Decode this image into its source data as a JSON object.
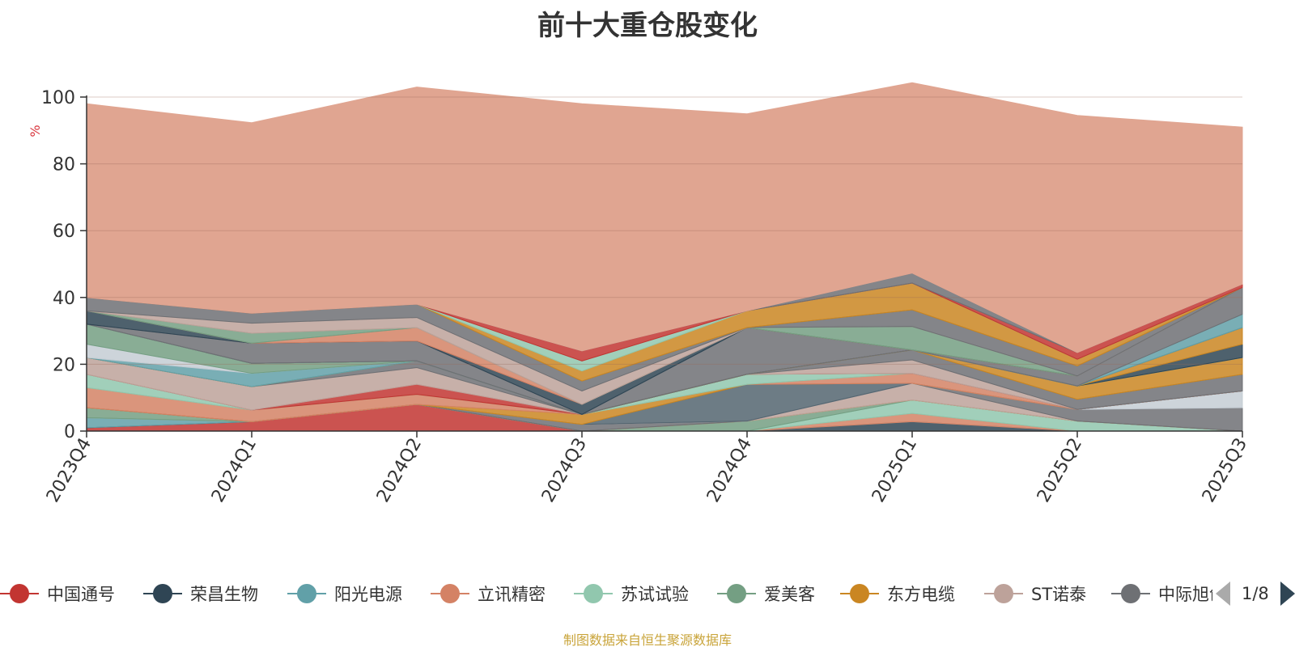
{
  "chart_data": {
    "type": "area",
    "stacked": true,
    "title": "前十大重仓股变化",
    "ylabel": "%",
    "ylim": [
      0,
      100
    ],
    "yticks": [
      0,
      20,
      40,
      60,
      80,
      100
    ],
    "grid": true,
    "x": [
      "2023Q4",
      "2024Q1",
      "2024Q2",
      "2024Q3",
      "2024Q4",
      "2025Q1",
      "2025Q2",
      "2025Q3"
    ],
    "legend_position": "bottom",
    "legend_page": "1/8",
    "series": [
      {
        "name": "中国通号",
        "color": "#c23531",
        "values": [
          1.0,
          2.8,
          8.0,
          0.0,
          0.0,
          0.0,
          0.0,
          0.0
        ]
      },
      {
        "name": "荣昌生物",
        "color": "#2f4554",
        "values": [
          0.0,
          0.0,
          0.0,
          0.0,
          0.0,
          2.8,
          0.0,
          0.0
        ]
      },
      {
        "name": "阳光电源",
        "color": "#61a0a8",
        "values": [
          3.0,
          0.0,
          0.0,
          0.0,
          0.0,
          0.0,
          0.0,
          0.0
        ]
      },
      {
        "name": "立讯精密",
        "color": "#d48265",
        "values": [
          0.0,
          0.0,
          0.0,
          0.0,
          0.0,
          2.5,
          0.0,
          0.0
        ]
      },
      {
        "name": "苏试试验",
        "color": "#91c7ae",
        "values": [
          0.0,
          0.0,
          0.0,
          0.0,
          0.0,
          4.0,
          3.0,
          0.0
        ]
      },
      {
        "name": "爱美客",
        "color": "#749f83",
        "values": [
          3.0,
          0.0,
          0.0,
          0.0,
          3.0,
          0.0,
          0.0,
          0.0
        ]
      },
      {
        "name": "东方电缆",
        "color": "#ca8622",
        "values": [
          0.0,
          0.0,
          0.0,
          0.0,
          0.0,
          0.0,
          0.0,
          0.0
        ]
      },
      {
        "name": "ST诺泰",
        "color": "#bda29a",
        "values": [
          0.0,
          0.0,
          0.0,
          0.0,
          0.0,
          5.0,
          0.0,
          0.0
        ]
      },
      {
        "name": "中际旭创",
        "color": "#6e7074",
        "values": [
          0.0,
          0.0,
          0.0,
          2.0,
          0.0,
          0.0,
          3.5,
          7.0
        ]
      },
      {
        "name": "",
        "color": "#c4ccd3",
        "values": [
          0.0,
          0.0,
          0.0,
          0.0,
          0.0,
          0.0,
          0.0,
          5.0
        ]
      },
      {
        "name": "",
        "color": "#546570",
        "values": [
          0.0,
          0.0,
          0.0,
          0.0,
          11.0,
          0.0,
          0.0,
          0.0
        ]
      },
      {
        "name": "",
        "color": "#ca8622",
        "values": [
          0.0,
          0.0,
          0.0,
          3.0,
          0.0,
          0.0,
          0.0,
          0.0
        ]
      },
      {
        "name": "",
        "color": "#d48265",
        "values": [
          6.0,
          3.5,
          3.0,
          0.0,
          0.0,
          3.0,
          0.0,
          0.0
        ]
      },
      {
        "name": "",
        "color": "#91c7ae",
        "values": [
          4.0,
          0.0,
          0.0,
          0.0,
          3.0,
          0.0,
          0.0,
          0.0
        ]
      },
      {
        "name": "",
        "color": "#c23531",
        "values": [
          0.0,
          0.0,
          3.0,
          0.0,
          0.0,
          0.0,
          0.0,
          0.0
        ]
      },
      {
        "name": "",
        "color": "#bda29a",
        "values": [
          5.0,
          7.0,
          5.0,
          0.0,
          0.0,
          4.0,
          0.0,
          0.0
        ]
      },
      {
        "name": "",
        "color": "#6e7074",
        "values": [
          0.0,
          0.0,
          2.0,
          0.0,
          0.0,
          3.0,
          3.0,
          5.0
        ]
      },
      {
        "name": "",
        "color": "#ca8622",
        "values": [
          0.0,
          0.0,
          0.0,
          0.0,
          0.0,
          0.0,
          4.0,
          5.0
        ]
      },
      {
        "name": "",
        "color": "#61a0a8",
        "values": [
          0.0,
          4.0,
          0.0,
          0.0,
          0.0,
          0.0,
          0.0,
          0.0
        ]
      },
      {
        "name": "",
        "color": "#c4ccd3",
        "values": [
          4.0,
          0.0,
          0.0,
          0.0,
          0.0,
          0.0,
          0.0,
          0.0
        ]
      },
      {
        "name": "",
        "color": "#749f83",
        "values": [
          6.0,
          3.0,
          0.0,
          0.0,
          0.0,
          0.0,
          0.0,
          0.0
        ]
      },
      {
        "name": "",
        "color": "#2f4554",
        "values": [
          0.0,
          0.0,
          0.0,
          0.0,
          0.0,
          0.0,
          0.0,
          4.0
        ]
      },
      {
        "name": "",
        "color": "#ca8622",
        "values": [
          0.0,
          0.0,
          0.0,
          0.0,
          0.0,
          0.0,
          0.0,
          5.0
        ]
      },
      {
        "name": "",
        "color": "#6e7074",
        "values": [
          0.0,
          0.0,
          0.0,
          0.0,
          14.0,
          0.0,
          0.0,
          0.0
        ]
      },
      {
        "name": "",
        "color": "#61a0a8",
        "values": [
          0.0,
          0.0,
          0.0,
          0.0,
          0.0,
          0.0,
          0.0,
          4.0
        ]
      },
      {
        "name": "",
        "color": "#6e7074",
        "values": [
          0.0,
          6.0,
          6.0,
          0.0,
          0.0,
          0.0,
          3.0,
          8.0
        ]
      },
      {
        "name": "",
        "color": "#2f4554",
        "values": [
          4.0,
          0.0,
          0.0,
          3.0,
          0.0,
          0.0,
          0.0,
          0.0
        ]
      },
      {
        "name": "",
        "color": "#d48265",
        "values": [
          0.0,
          0.0,
          4.0,
          0.0,
          0.0,
          0.0,
          0.0,
          0.0
        ]
      },
      {
        "name": "",
        "color": "#749f83",
        "values": [
          0.0,
          3.0,
          0.0,
          0.0,
          0.0,
          7.0,
          0.0,
          0.0
        ]
      },
      {
        "name": "",
        "color": "#bda29a",
        "values": [
          0.0,
          3.0,
          3.0,
          4.0,
          0.0,
          0.0,
          0.0,
          0.0
        ]
      },
      {
        "name": "",
        "color": "#6e7074",
        "values": [
          4.0,
          3.0,
          4.0,
          3.0,
          0.0,
          5.0,
          3.0,
          0.0
        ]
      },
      {
        "name": "",
        "color": "#ca8622",
        "values": [
          0.0,
          0.0,
          0.0,
          3.0,
          5.0,
          8.0,
          2.0,
          0.0
        ]
      },
      {
        "name": "",
        "color": "#91c7ae",
        "values": [
          0.0,
          0.0,
          0.0,
          3.0,
          0.0,
          0.0,
          0.0,
          0.0
        ]
      },
      {
        "name": "",
        "color": "#c23531",
        "values": [
          0.0,
          0.0,
          0.0,
          3.0,
          0.0,
          0.0,
          2.0,
          1.0
        ]
      },
      {
        "name": "",
        "color": "#6e7074",
        "values": [
          0.0,
          0.0,
          0.0,
          0.0,
          0.0,
          3.0,
          0.0,
          0.0
        ]
      },
      {
        "name": "",
        "color": "#e0a591",
        "values": [
          58.0,
          57.0,
          65.0,
          74.0,
          59.0,
          57.0,
          71.0,
          47.0
        ]
      }
    ]
  },
  "footer": {
    "source_note": "制图数据来自恒生聚源数据库"
  }
}
